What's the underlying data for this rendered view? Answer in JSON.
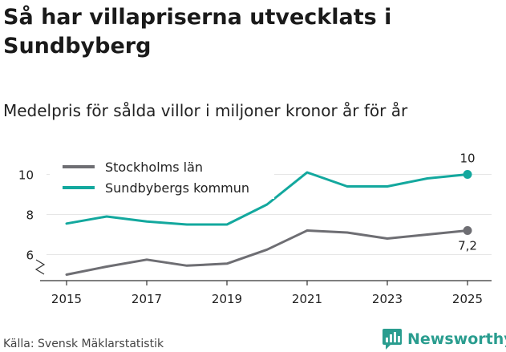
{
  "header": {
    "title": "Så har villapriserna utvecklats i Sundbyberg",
    "subtitle": "Medelpris för sålda villor i miljoner kronor år för år"
  },
  "footer": {
    "source": "Källa: Svensk Mäklarstatistik",
    "brand": "Newsworthy"
  },
  "colors": {
    "stockholm": "#6e6e73",
    "sundbyberg": "#13a89e",
    "axis": "#333333",
    "grid": "#e6e6e6"
  },
  "chart_data": {
    "type": "line",
    "title": "Medelpris för sålda villor i miljoner kronor år för år",
    "xlabel": "",
    "ylabel": "",
    "x": [
      2015,
      2016,
      2017,
      2018,
      2019,
      2020,
      2021,
      2022,
      2023,
      2024,
      2025
    ],
    "xticks": [
      "2015",
      "2017",
      "2019",
      "2021",
      "2023",
      "2025"
    ],
    "yticks": [
      "6",
      "8",
      "10"
    ],
    "ylim": [
      4.7,
      11.5
    ],
    "legend_position": "top-left",
    "series": [
      {
        "name": "Stockholms län",
        "color": "#6e6e73",
        "values": [
          5.0,
          5.4,
          5.75,
          5.45,
          5.55,
          6.25,
          7.2,
          7.1,
          6.8,
          7.0,
          7.2
        ],
        "end_label": "7,2"
      },
      {
        "name": "Sundbybergs kommun",
        "color": "#13a89e",
        "values": [
          7.55,
          7.9,
          7.65,
          7.5,
          7.5,
          8.5,
          10.1,
          9.4,
          9.4,
          9.8,
          10.0
        ],
        "end_label": "10"
      }
    ]
  }
}
